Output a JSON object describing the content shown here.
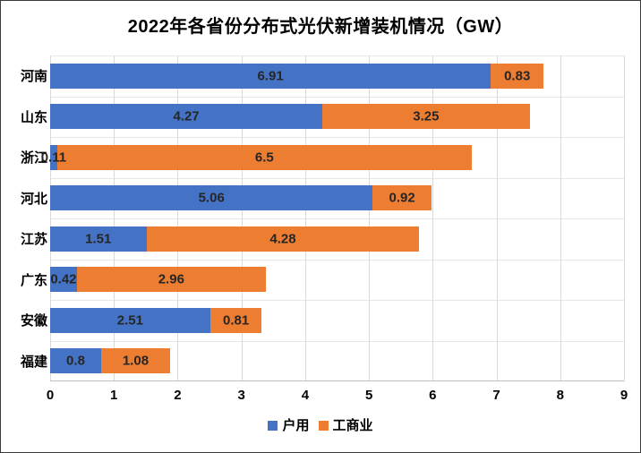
{
  "title": "2022年各省份分布式光伏新增装机情况（GW）",
  "colors": {
    "series_residential": "#4472C4",
    "series_commercial": "#ED7D31",
    "vertical_gridline": "#D9D9D9",
    "category_gridline": "#E6E6E6",
    "axis_line": "#C0C0C0",
    "data_label": "#262626",
    "text": "#000000"
  },
  "chart_data": {
    "type": "bar",
    "orientation": "horizontal",
    "stacked": true,
    "title": "2022年各省份分布式光伏新增装机情况（GW）",
    "categories": [
      "河南",
      "山东",
      "浙江",
      "河北",
      "江苏",
      "广东",
      "安徽",
      "福建"
    ],
    "series": [
      {
        "name": "户用",
        "color": "#4472C4",
        "values": [
          6.91,
          4.27,
          0.11,
          5.06,
          1.51,
          0.42,
          2.51,
          0.8
        ]
      },
      {
        "name": "工商业",
        "color": "#ED7D31",
        "values": [
          0.83,
          3.25,
          6.5,
          0.92,
          4.28,
          2.96,
          0.81,
          1.08
        ]
      }
    ],
    "x_ticks": [
      0,
      1,
      2,
      3,
      4,
      5,
      6,
      7,
      8,
      9
    ],
    "xlim": [
      0,
      9
    ],
    "xlabel": "",
    "ylabel": "",
    "grid": "vertical-major-and-category-boundaries",
    "data_labels": "center",
    "legend_position": "bottom-center"
  }
}
